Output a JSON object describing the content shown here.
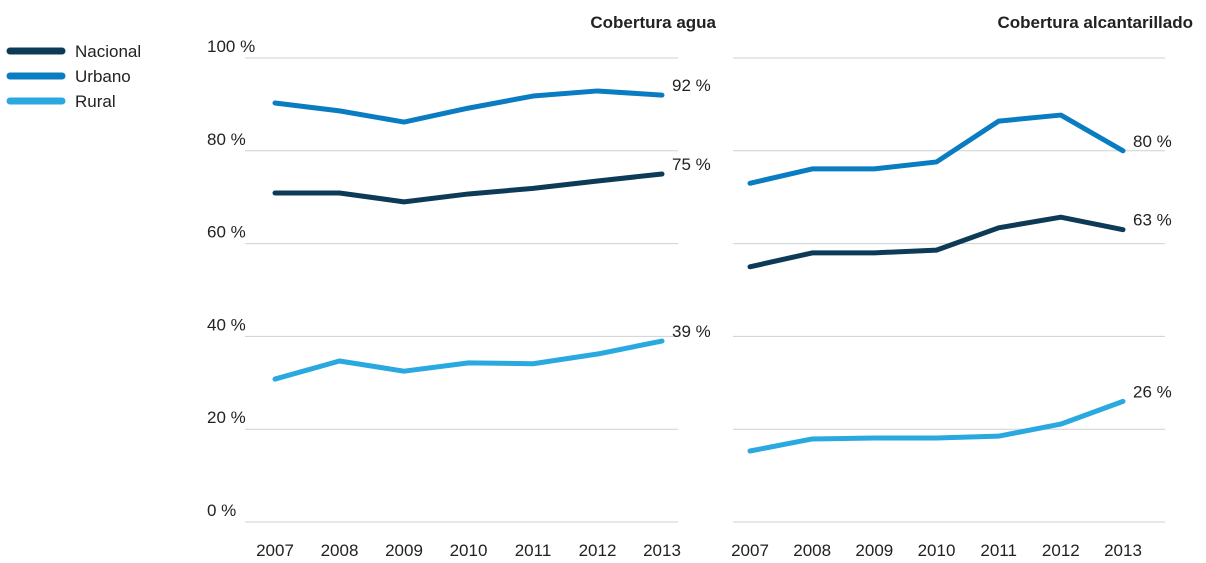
{
  "chart_data": [
    {
      "type": "line",
      "title": "Cobertura agua",
      "x": [
        "2007",
        "2008",
        "2009",
        "2010",
        "2011",
        "2012",
        "2013"
      ],
      "ylim": [
        0,
        100
      ],
      "yticks": [
        {
          "value": 0,
          "label": "0 %"
        },
        {
          "value": 20,
          "label": "20 %"
        },
        {
          "value": 40,
          "label": "40 %"
        },
        {
          "value": 60,
          "label": "60 %"
        },
        {
          "value": 80,
          "label": "80 %"
        },
        {
          "value": 100,
          "label": "100 %"
        }
      ],
      "grid": true,
      "legend": "top-left",
      "series": [
        {
          "name": "Nacional",
          "color": "#0d3b57",
          "values": [
            70.9,
            70.9,
            69,
            70.7,
            71.9,
            73.5,
            75
          ],
          "value_labels": [
            null,
            null,
            null,
            null,
            null,
            null,
            "75 %"
          ]
        },
        {
          "name": "Urbano",
          "color": "#0a7dc2",
          "values": [
            90.3,
            88.6,
            86.2,
            89.2,
            91.8,
            92.9,
            92
          ],
          "value_labels": [
            null,
            null,
            null,
            null,
            null,
            null,
            "92 %"
          ]
        },
        {
          "name": "Rural",
          "color": "#2aa9e0",
          "values": [
            30.8,
            34.7,
            32.5,
            34.3,
            34.1,
            36.2,
            39
          ],
          "value_labels": [
            null,
            null,
            null,
            null,
            null,
            null,
            "39 %"
          ]
        }
      ]
    },
    {
      "type": "line",
      "title": "Cobertura alcantarillado",
      "x": [
        "2007",
        "2008",
        "2009",
        "2010",
        "2011",
        "2012",
        "2013"
      ],
      "ylim": [
        0,
        100
      ],
      "yticks": [
        0,
        20,
        40,
        60,
        80,
        100
      ],
      "ytick_labels": false,
      "grid": true,
      "series": [
        {
          "color": "#0d3b57",
          "values": [
            55,
            58,
            58,
            58.6,
            63.4,
            65.7,
            63
          ],
          "value_labels": [
            null,
            null,
            null,
            null,
            null,
            null,
            "63 %"
          ]
        },
        {
          "color": "#0a7dc2",
          "values": [
            73,
            76.1,
            76.1,
            77.6,
            86.4,
            87.7,
            80
          ],
          "value_labels": [
            null,
            null,
            null,
            null,
            null,
            null,
            "80 %"
          ]
        },
        {
          "color": "#2aa9e0",
          "values": [
            15.3,
            17.9,
            18.1,
            18.1,
            18.5,
            21.1,
            26
          ],
          "value_labels": [
            null,
            null,
            null,
            null,
            null,
            null,
            "26 %"
          ]
        }
      ]
    }
  ]
}
